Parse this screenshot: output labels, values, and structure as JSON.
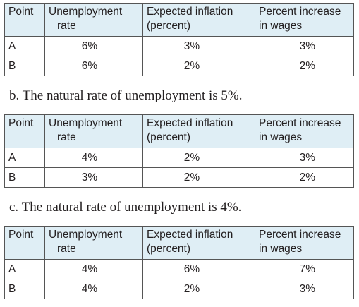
{
  "headers": {
    "point": "Point",
    "unemployment_l1": "Unemployment",
    "unemployment_l2": "rate",
    "inflation_l1": "Expected inflation",
    "inflation_l2": "(percent)",
    "wages_l1": "Percent increase",
    "wages_l2": "in wages"
  },
  "tables": [
    {
      "rows": [
        {
          "point": "A",
          "unemployment": "6%",
          "inflation": "3%",
          "wages": "3%"
        },
        {
          "point": "B",
          "unemployment": "6%",
          "inflation": "2%",
          "wages": "2%"
        }
      ]
    },
    {
      "caption": "b. The natural rate of unemployment is 5%.",
      "rows": [
        {
          "point": "A",
          "unemployment": "4%",
          "inflation": "2%",
          "wages": "3%"
        },
        {
          "point": "B",
          "unemployment": "3%",
          "inflation": "2%",
          "wages": "2%"
        }
      ]
    },
    {
      "caption": "c. The natural rate of unemployment is 4%.",
      "rows": [
        {
          "point": "A",
          "unemployment": "4%",
          "inflation": "6%",
          "wages": "7%"
        },
        {
          "point": "B",
          "unemployment": "4%",
          "inflation": "2%",
          "wages": "3%"
        }
      ]
    }
  ]
}
